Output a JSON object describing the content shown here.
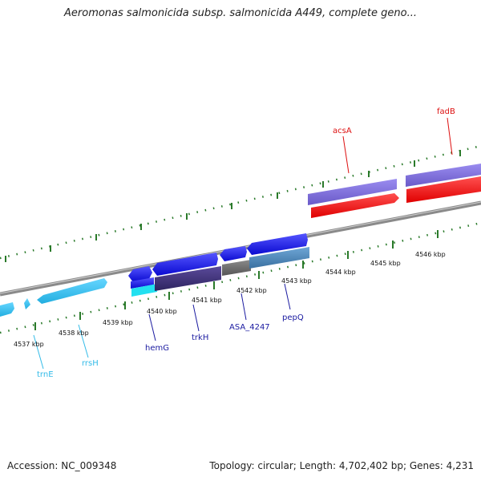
{
  "title": "Aeromonas salmonicida subsp. salmonicida A449, complete geno...",
  "footer": {
    "accession": "Accession: NC_009348",
    "topology": "Topology: circular; Length: 4,702,402 bp; Genes: 4,231"
  },
  "scale_labels": [
    "4537 kbp",
    "4538 kbp",
    "4539 kbp",
    "4540 kbp",
    "4541 kbp",
    "4542 kbp",
    "4543 kbp",
    "4544 kbp",
    "4545 kbp",
    "4546 kbp"
  ],
  "genes": [
    {
      "name": "trnE",
      "color": "#33bbe8"
    },
    {
      "name": "rrsH",
      "color": "#33bbe8"
    },
    {
      "name": "hemG",
      "color": "#1a1aa0"
    },
    {
      "name": "trkH",
      "color": "#1a1aa0"
    },
    {
      "name": "ASA_4247",
      "color": "#1a1aa0"
    },
    {
      "name": "pepQ",
      "color": "#1a1aa0"
    },
    {
      "name": "acsA",
      "color": "#dd1111"
    },
    {
      "name": "fadB",
      "color": "#dd1111"
    }
  ],
  "colors": {
    "backbone": "#8a8a8a",
    "tick": "#2a7a2a",
    "forward_gene": "#1515e6",
    "reverse_gene": "#ff1010",
    "trna": "#33bbe8",
    "cog_purple": "#7a6ad8",
    "cog_steel": "#4a85b8"
  }
}
